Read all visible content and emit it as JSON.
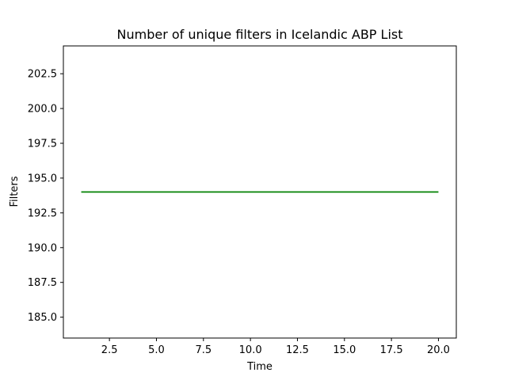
{
  "chart_data": {
    "type": "line",
    "title": "Number of unique filters in Icelandic ABP List",
    "xlabel": "Time",
    "ylabel": "Filters",
    "xlim": [
      0.05,
      20.95
    ],
    "ylim": [
      183.5,
      204.5
    ],
    "x_ticks": [
      2.5,
      5.0,
      7.5,
      10.0,
      12.5,
      15.0,
      17.5,
      20.0
    ],
    "x_tick_labels": [
      "2.5",
      "5.0",
      "7.5",
      "10.0",
      "12.5",
      "15.0",
      "17.5",
      "20.0"
    ],
    "y_ticks": [
      185.0,
      187.5,
      190.0,
      192.5,
      195.0,
      197.5,
      200.0,
      202.5
    ],
    "y_tick_labels": [
      "185.0",
      "187.5",
      "190.0",
      "192.5",
      "195.0",
      "197.5",
      "200.0",
      "202.5"
    ],
    "grid": false,
    "series": [
      {
        "color": "#008000",
        "x": [
          1,
          20
        ],
        "y": [
          194,
          194
        ]
      }
    ]
  }
}
